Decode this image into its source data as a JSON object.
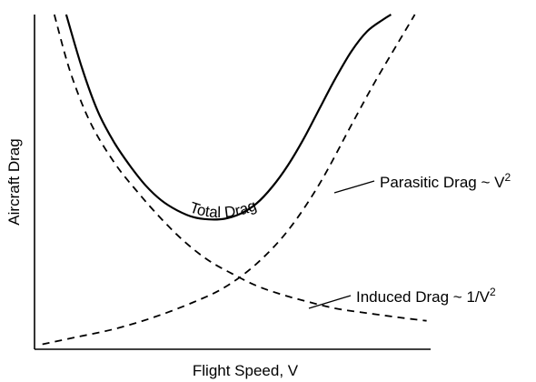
{
  "chart_data": {
    "type": "line",
    "title": "",
    "xlabel": "Flight Speed, V",
    "ylabel": "Aircraft Drag",
    "xlim": [
      0,
      10
    ],
    "ylim": [
      0,
      10
    ],
    "grid": false,
    "legend": "none",
    "tick_labels": "none",
    "series": [
      {
        "name": "Total Drag",
        "style": "solid",
        "x": [
          0.8,
          1.2,
          1.6,
          2.0,
          2.4,
          2.8,
          3.2,
          3.6,
          4.0,
          4.4,
          4.8,
          5.2,
          5.6,
          6.0,
          6.4,
          6.8,
          7.2,
          7.6,
          8.0,
          8.4,
          8.8,
          9.0
        ],
        "y": [
          10.0,
          8.4,
          7.1,
          6.2,
          5.5,
          4.9,
          4.45,
          4.15,
          3.95,
          3.88,
          3.9,
          4.05,
          4.35,
          4.85,
          5.5,
          6.3,
          7.2,
          8.1,
          8.9,
          9.5,
          9.85,
          10.0
        ]
      },
      {
        "name": "Parasitic Drag ~ V",
        "style": "dashed",
        "x": [
          0.2,
          1.0,
          2.0,
          3.0,
          4.0,
          4.8,
          5.6,
          6.4,
          7.2,
          8.0,
          8.6,
          9.2,
          9.6
        ],
        "y": [
          0.15,
          0.35,
          0.6,
          0.95,
          1.4,
          1.85,
          2.55,
          3.55,
          4.95,
          6.7,
          8.0,
          9.2,
          10.0
        ]
      },
      {
        "name": "Induced Drag ~ 1/V",
        "style": "dashed",
        "x": [
          0.5,
          0.9,
          1.4,
          2.0,
          2.6,
          3.2,
          3.8,
          4.4,
          5.0,
          5.6,
          6.2,
          6.8,
          7.6,
          8.4,
          9.2,
          9.9
        ],
        "y": [
          10.0,
          8.3,
          6.8,
          5.6,
          4.7,
          3.9,
          3.2,
          2.65,
          2.25,
          1.9,
          1.65,
          1.45,
          1.22,
          1.08,
          0.95,
          0.85
        ]
      }
    ],
    "annotations": [
      {
        "id": "total",
        "text": "Total Drag"
      },
      {
        "id": "parasitic",
        "text": "Parasitic Drag ~ V",
        "superscript": "2"
      },
      {
        "id": "induced",
        "text": "Induced Drag ~ 1/V",
        "superscript": "2"
      }
    ]
  }
}
